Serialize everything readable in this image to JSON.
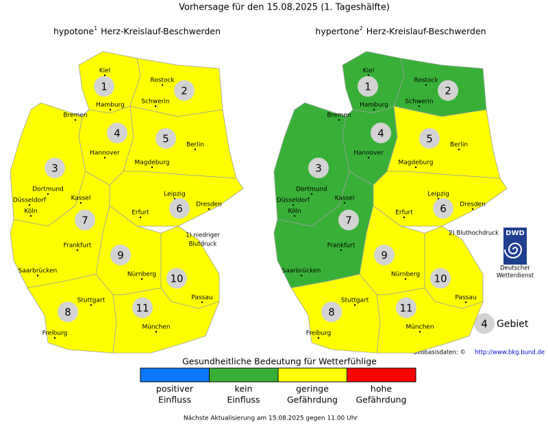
{
  "title": "Vorhersage für den 15.08.2025 (1. Tageshälfte)",
  "cities": [
    "Kiel",
    "Rostock",
    "Hamburg",
    "Schwerin",
    "Bremen",
    "Hannover",
    "Berlin",
    "Magdeburg",
    "Dortmund",
    "Düsseldorf",
    "Köln",
    "Kassel",
    "Leipzig",
    "Dresden",
    "Erfurt",
    "Frankfurt",
    "Saarbrücken",
    "Nürnberg",
    "Stuttgart",
    "Passau",
    "Freiburg",
    "München"
  ],
  "maps": [
    {
      "title": "hypotone",
      "title_sup": "1",
      "title_rest": "Herz-Kreislauf-Beschwerden",
      "note": [
        "1) niedriger",
        "Blutdruck"
      ],
      "regions": [
        {
          "label": "1",
          "color": "#ffff00"
        },
        {
          "label": "2",
          "color": "#ffff00"
        },
        {
          "label": "3",
          "color": "#ffff00"
        },
        {
          "label": "4",
          "color": "#ffff00"
        },
        {
          "label": "5",
          "color": "#ffff00"
        },
        {
          "label": "6",
          "color": "#ffff00"
        },
        {
          "label": "7",
          "color": "#ffff00"
        },
        {
          "label": "8",
          "color": "#ffff00"
        },
        {
          "label": "9",
          "color": "#ffff00"
        },
        {
          "label": "10",
          "color": "#ffff00"
        },
        {
          "label": "11",
          "color": "#ffff00"
        }
      ]
    },
    {
      "title": "hypertone",
      "title_sup": "2",
      "title_rest": "Herz-Kreislauf-Beschwerden",
      "note": [
        "2) Bluthochdruck"
      ],
      "regions": [
        {
          "label": "1",
          "color": "#38b038"
        },
        {
          "label": "2",
          "color": "#38b038"
        },
        {
          "label": "3",
          "color": "#38b038"
        },
        {
          "label": "4",
          "color": "#38b038"
        },
        {
          "label": "5",
          "color": "#ffff00"
        },
        {
          "label": "6",
          "color": "#ffff00"
        },
        {
          "label": "7",
          "color": "#38b038"
        },
        {
          "label": "8",
          "color": "#ffff00"
        },
        {
          "label": "9",
          "color": "#ffff00"
        },
        {
          "label": "10",
          "color": "#ffff00"
        },
        {
          "label": "11",
          "color": "#ffff00"
        }
      ]
    }
  ],
  "logo": {
    "name": "DWD",
    "line1": "Deutscher",
    "line2": "Wetterdienst"
  },
  "area_key": {
    "label": "4",
    "text": "Gebiet"
  },
  "source": {
    "text": "Geobasisdaten: ©",
    "link": "http://www.bkg.bund.de"
  },
  "legend": {
    "title": "Gesundheitliche Bedeutung für Wetterfühlige",
    "items": [
      {
        "line1": "positiver",
        "line2": "Einfluss",
        "color": "#0a78ff"
      },
      {
        "line1": "kein",
        "line2": "Einfluss",
        "color": "#38b038"
      },
      {
        "line1": "geringe",
        "line2": "Gefährdung",
        "color": "#ffff00"
      },
      {
        "line1": "hohe",
        "line2": "Gefährdung",
        "color": "#ff0000"
      }
    ]
  },
  "footer": "Nächste Aktualisierung am 15.08.2025 gegen 11.00 Uhr"
}
